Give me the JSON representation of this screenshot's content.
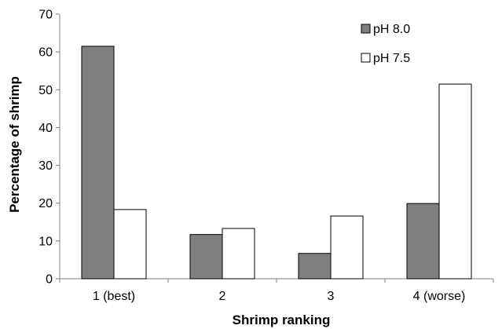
{
  "chart_data": {
    "type": "bar",
    "title": "",
    "xlabel": "Shrimp ranking",
    "ylabel": "Percentage of shrimp",
    "categories": [
      "1 (best)",
      "2",
      "3",
      "4 (worse)"
    ],
    "series": [
      {
        "name": "pH 8.0",
        "values": [
          61.5,
          11.7,
          6.7,
          19.9
        ],
        "color": "#7f7f7f"
      },
      {
        "name": "pH 7.5",
        "values": [
          18.3,
          13.3,
          16.6,
          51.5
        ],
        "color": "#ffffff"
      }
    ],
    "ylim": [
      0,
      70
    ],
    "yticks": [
      "0",
      "10",
      "20",
      "30",
      "40",
      "50",
      "60",
      "70"
    ],
    "grid": false,
    "legend": "top-right",
    "colors": {
      "axis": "#808080",
      "bar_stroke": "#000000"
    }
  }
}
